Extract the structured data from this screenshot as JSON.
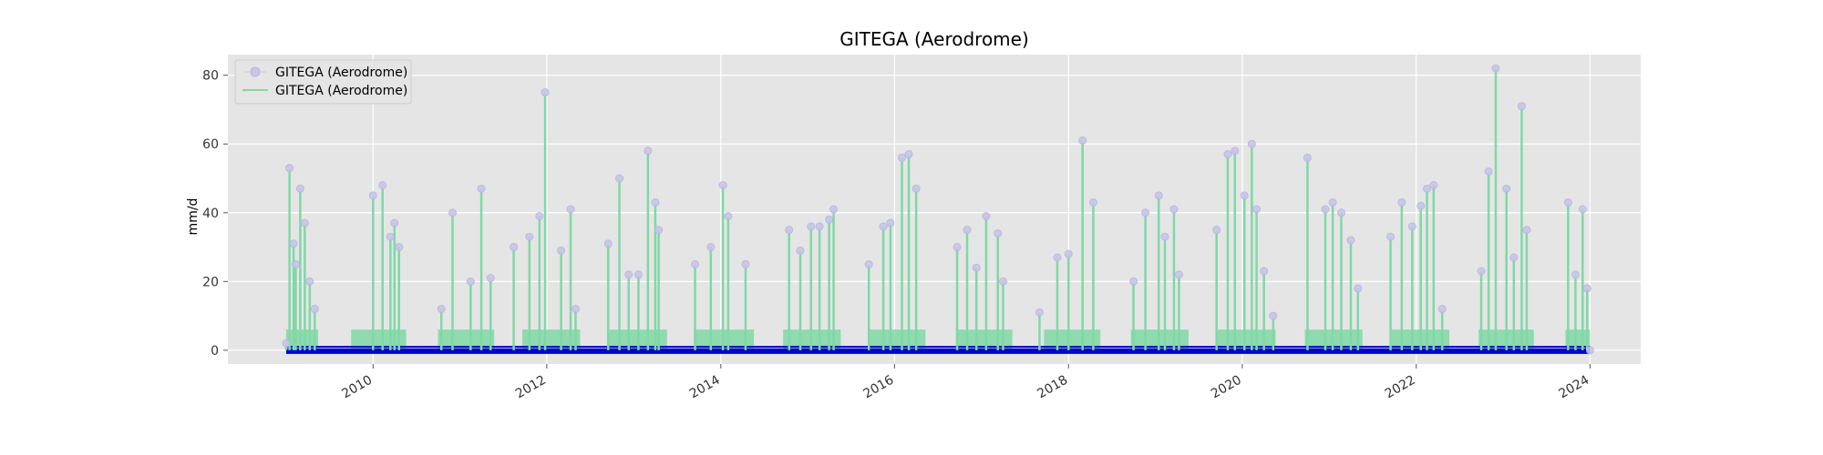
{
  "chart_data": {
    "type": "line",
    "title": "GITEGA (Aerodrome)",
    "xlabel": "",
    "ylabel": "mm/d",
    "xlim": [
      "2008-05-01",
      "2024-08-01"
    ],
    "ylim": [
      -4,
      86
    ],
    "x_ticks": [
      "2010",
      "2012",
      "2014",
      "2016",
      "2018",
      "2020",
      "2022",
      "2024"
    ],
    "y_ticks": [
      0,
      20,
      40,
      60,
      80
    ],
    "grid": true,
    "legend_position": "top-left",
    "colors": {
      "line": "#80d8a6",
      "marker": "#c9c6e8",
      "baseline": "#0000d0",
      "background": "#e5e5e5",
      "grid": "#ffffff"
    },
    "series": [
      {
        "name": "GITEGA (Aerodrome)",
        "style": "markers",
        "x": [
          "2009-01-01",
          "2009-01-15",
          "2009-02-01",
          "2009-02-10",
          "2009-03-01",
          "2009-03-20",
          "2009-04-10",
          "2009-05-01",
          "2010-01-01",
          "2010-02-10",
          "2010-03-15",
          "2010-04-01",
          "2010-04-20",
          "2010-10-15",
          "2010-12-01",
          "2011-02-15",
          "2011-04-01",
          "2011-05-10",
          "2011-08-15",
          "2011-10-20",
          "2011-12-01",
          "2011-12-25",
          "2012-03-01",
          "2012-04-10",
          "2012-05-01",
          "2012-09-15",
          "2012-11-01",
          "2012-12-10",
          "2013-01-20",
          "2013-03-01",
          "2013-04-01",
          "2013-04-15",
          "2013-09-15",
          "2013-11-20",
          "2014-01-10",
          "2014-02-01",
          "2014-04-15",
          "2014-10-15",
          "2014-12-01",
          "2015-01-15",
          "2015-02-20",
          "2015-04-01",
          "2015-04-20",
          "2015-09-15",
          "2015-11-15",
          "2015-12-15",
          "2016-02-01",
          "2016-03-01",
          "2016-04-01",
          "2016-09-20",
          "2016-11-01",
          "2016-12-10",
          "2017-01-20",
          "2017-03-10",
          "2017-04-01",
          "2017-09-01",
          "2017-11-15",
          "2018-01-01",
          "2018-03-01",
          "2018-04-15",
          "2018-10-01",
          "2018-11-20",
          "2019-01-15",
          "2019-02-10",
          "2019-03-20",
          "2019-04-10",
          "2019-09-15",
          "2019-11-01",
          "2019-12-01",
          "2020-01-10",
          "2020-02-10",
          "2020-03-01",
          "2020-04-01",
          "2020-05-10",
          "2020-10-01",
          "2020-12-15",
          "2021-01-15",
          "2021-02-20",
          "2021-04-01",
          "2021-05-01",
          "2021-09-15",
          "2021-11-01",
          "2021-12-15",
          "2022-01-20",
          "2022-02-15",
          "2022-03-15",
          "2022-04-20",
          "2022-10-01",
          "2022-11-01",
          "2022-12-01",
          "2023-01-15",
          "2023-02-15",
          "2023-03-20",
          "2023-04-10",
          "2023-10-01",
          "2023-11-01",
          "2023-12-01",
          "2023-12-20",
          "2024-01-01"
        ],
        "y": [
          2,
          53,
          31,
          25,
          47,
          37,
          20,
          12,
          45,
          48,
          33,
          37,
          30,
          12,
          40,
          20,
          47,
          21,
          30,
          33,
          39,
          75,
          29,
          41,
          12,
          31,
          50,
          22,
          22,
          58,
          43,
          35,
          25,
          30,
          48,
          39,
          25,
          35,
          29,
          36,
          36,
          38,
          41,
          25,
          36,
          37,
          56,
          57,
          47,
          30,
          35,
          24,
          39,
          34,
          20,
          11,
          27,
          28,
          61,
          43,
          20,
          40,
          45,
          33,
          41,
          22,
          35,
          57,
          58,
          45,
          60,
          41,
          23,
          10,
          56,
          41,
          43,
          40,
          32,
          18,
          33,
          43,
          36,
          42,
          47,
          48,
          12,
          23,
          52,
          82,
          47,
          27,
          71,
          35,
          43,
          22,
          41,
          18,
          0
        ]
      },
      {
        "name": "GITEGA (Aerodrome)",
        "style": "line",
        "x": [
          "2009-01-01",
          "2009-01-15",
          "2009-02-01",
          "2009-02-10",
          "2009-03-01",
          "2009-03-20",
          "2009-04-10",
          "2009-05-01",
          "2010-01-01",
          "2010-02-10",
          "2010-03-15",
          "2010-04-01",
          "2010-04-20",
          "2010-10-15",
          "2010-12-01",
          "2011-02-15",
          "2011-04-01",
          "2011-05-10",
          "2011-08-15",
          "2011-10-20",
          "2011-12-01",
          "2011-12-25",
          "2012-03-01",
          "2012-04-10",
          "2012-05-01",
          "2012-09-15",
          "2012-11-01",
          "2012-12-10",
          "2013-01-20",
          "2013-03-01",
          "2013-04-01",
          "2013-04-15",
          "2013-09-15",
          "2013-11-20",
          "2014-01-10",
          "2014-02-01",
          "2014-04-15",
          "2014-10-15",
          "2014-12-01",
          "2015-01-15",
          "2015-02-20",
          "2015-04-01",
          "2015-04-20",
          "2015-09-15",
          "2015-11-15",
          "2015-12-15",
          "2016-02-01",
          "2016-03-01",
          "2016-04-01",
          "2016-09-20",
          "2016-11-01",
          "2016-12-10",
          "2017-01-20",
          "2017-03-10",
          "2017-04-01",
          "2017-09-01",
          "2017-11-15",
          "2018-01-01",
          "2018-03-01",
          "2018-04-15",
          "2018-10-01",
          "2018-11-20",
          "2019-01-15",
          "2019-02-10",
          "2019-03-20",
          "2019-04-10",
          "2019-09-15",
          "2019-11-01",
          "2019-12-01",
          "2020-01-10",
          "2020-02-10",
          "2020-03-01",
          "2020-04-01",
          "2020-05-10",
          "2020-10-01",
          "2020-12-15",
          "2021-01-15",
          "2021-02-20",
          "2021-04-01",
          "2021-05-01",
          "2021-09-15",
          "2021-11-01",
          "2021-12-15",
          "2022-01-20",
          "2022-02-15",
          "2022-03-15",
          "2022-04-20",
          "2022-10-01",
          "2022-11-01",
          "2022-12-01",
          "2023-01-15",
          "2023-02-15",
          "2023-03-20",
          "2023-04-10",
          "2023-10-01",
          "2023-11-01",
          "2023-12-01",
          "2023-12-20",
          "2024-01-01"
        ],
        "y": [
          2,
          53,
          31,
          25,
          47,
          37,
          20,
          12,
          45,
          48,
          33,
          37,
          30,
          12,
          40,
          20,
          47,
          21,
          30,
          33,
          39,
          75,
          29,
          41,
          12,
          31,
          50,
          22,
          22,
          58,
          43,
          35,
          25,
          30,
          48,
          39,
          25,
          35,
          29,
          36,
          36,
          38,
          41,
          25,
          36,
          37,
          56,
          57,
          47,
          30,
          35,
          24,
          39,
          34,
          20,
          11,
          27,
          28,
          61,
          43,
          20,
          40,
          45,
          33,
          41,
          22,
          35,
          57,
          58,
          45,
          60,
          41,
          23,
          10,
          56,
          41,
          43,
          40,
          32,
          18,
          33,
          43,
          36,
          42,
          47,
          48,
          12,
          23,
          52,
          82,
          47,
          27,
          71,
          35,
          43,
          22,
          41,
          18,
          0
        ]
      }
    ],
    "wet_seasons": [
      [
        "2009-01-01",
        "2009-05-15"
      ],
      [
        "2009-10-01",
        "2010-05-20"
      ],
      [
        "2010-10-01",
        "2011-05-25"
      ],
      [
        "2011-09-20",
        "2012-05-20"
      ],
      [
        "2012-09-10",
        "2013-05-20"
      ],
      [
        "2013-09-10",
        "2014-05-20"
      ],
      [
        "2014-09-20",
        "2015-05-20"
      ],
      [
        "2015-09-15",
        "2016-05-10"
      ],
      [
        "2016-09-15",
        "2017-05-10"
      ],
      [
        "2017-09-20",
        "2018-05-15"
      ],
      [
        "2018-09-20",
        "2019-05-20"
      ],
      [
        "2019-09-20",
        "2020-05-20"
      ],
      [
        "2020-09-20",
        "2021-05-20"
      ],
      [
        "2021-09-20",
        "2022-05-20"
      ],
      [
        "2022-09-20",
        "2023-05-10"
      ],
      [
        "2023-09-20",
        "2024-01-01"
      ]
    ]
  }
}
